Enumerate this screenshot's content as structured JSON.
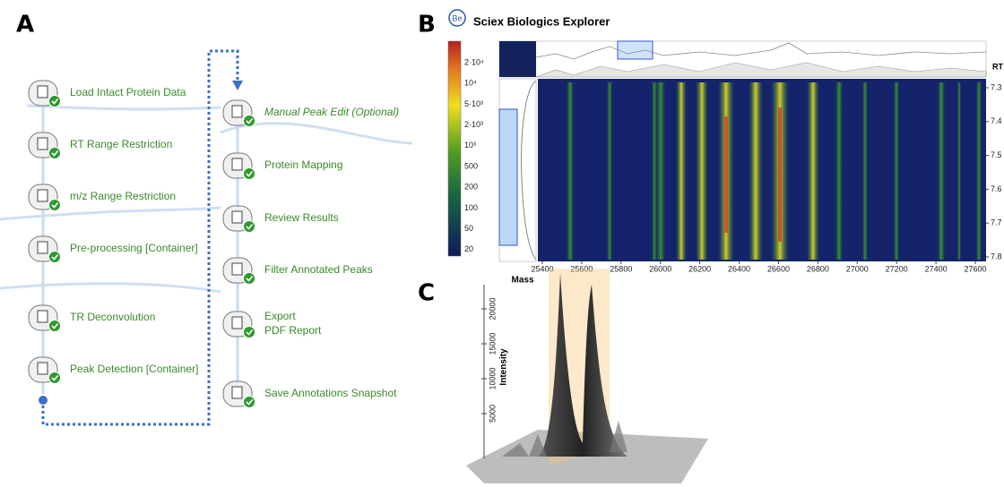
{
  "panel_a": {
    "label": "A",
    "left_steps": [
      [
        "Load Intact Protein Data"
      ],
      [
        "RT Range Restriction"
      ],
      [
        "m/z Range Restriction"
      ],
      [
        "Pre-processing [Container]"
      ],
      [
        "TR Deconvolution"
      ],
      [
        "Peak Detection [Container]"
      ]
    ],
    "right_steps": [
      [
        "Manual Peak Edit (Optional)"
      ],
      [
        "Protein Mapping"
      ],
      [
        "Review Results"
      ],
      [
        "Filter Annotated Peaks"
      ],
      [
        "Export",
        "PDF Report"
      ],
      [
        "Save Annotations Snapshot"
      ]
    ]
  },
  "panel_b": {
    "label": "B",
    "logo": "Be",
    "title": "Sciex Biologics Explorer",
    "colorbar_labels": [
      "2·10⁴",
      "10⁴",
      "5·10³",
      "2·10³",
      "10³",
      "500",
      "200",
      "100",
      "50",
      "20"
    ],
    "x_label": "Mass",
    "x_ticks": [
      25400,
      25600,
      25800,
      26000,
      26200,
      26400,
      26600,
      26800,
      27000,
      27200,
      27400,
      27600
    ],
    "y_label": "RT",
    "y_ticks": [
      7.3,
      7.4,
      7.5,
      7.6,
      7.7,
      7.8
    ]
  },
  "panel_c": {
    "label": "C",
    "y_label": "Intensity",
    "y_ticks": [
      5000,
      10000,
      15000,
      20000
    ]
  }
}
